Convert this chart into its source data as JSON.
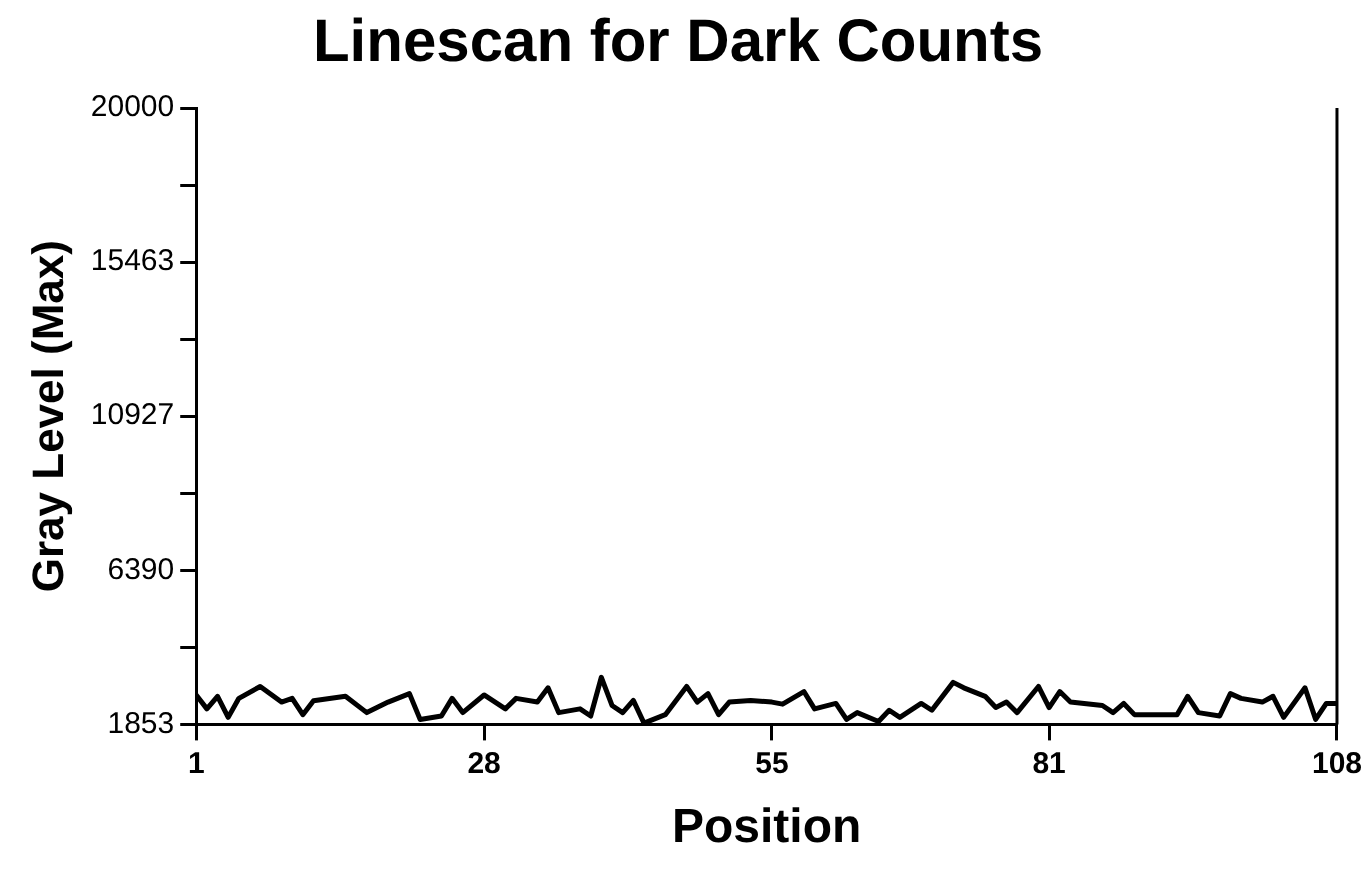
{
  "chart_data": {
    "type": "line",
    "title": "Linescan for Dark Counts",
    "xlabel": "Position",
    "ylabel": "Gray Level (Max)",
    "series": [
      {
        "color": "#000000",
        "x": [
          1,
          2,
          3,
          4,
          5,
          7,
          9,
          10,
          11,
          12,
          15,
          17,
          19,
          21,
          22,
          24,
          25,
          26,
          28,
          30,
          31,
          33,
          34,
          35,
          37,
          38,
          39,
          40,
          41,
          42,
          43,
          45,
          47,
          48,
          49,
          50,
          51,
          53,
          55,
          56,
          58,
          59,
          61,
          62,
          63,
          65,
          66,
          67,
          69,
          70,
          72,
          73,
          75,
          76,
          77,
          78,
          80,
          81,
          82,
          83,
          86,
          87,
          88,
          89,
          93,
          94,
          95,
          97,
          98,
          99,
          101,
          102,
          103,
          105,
          106,
          107,
          108
        ],
        "values": [
          2720,
          2310,
          2680,
          2060,
          2620,
          2970,
          2510,
          2620,
          2140,
          2550,
          2680,
          2200,
          2510,
          2760,
          2000,
          2100,
          2620,
          2200,
          2720,
          2310,
          2620,
          2510,
          2930,
          2200,
          2310,
          2100,
          3240,
          2410,
          2200,
          2560,
          1890,
          2140,
          2970,
          2510,
          2760,
          2140,
          2510,
          2560,
          2510,
          2450,
          2820,
          2310,
          2470,
          2000,
          2200,
          1940,
          2270,
          2060,
          2470,
          2270,
          3090,
          2930,
          2680,
          2350,
          2510,
          2200,
          2970,
          2350,
          2820,
          2510,
          2410,
          2200,
          2470,
          2140,
          2140,
          2680,
          2200,
          2100,
          2760,
          2620,
          2510,
          2680,
          2060,
          2930,
          2000,
          2470,
          2470
        ]
      }
    ],
    "xlim": [
      1,
      108
    ],
    "xticks": [
      1,
      28,
      55,
      81,
      108
    ],
    "ylim": [
      1853,
      20000
    ],
    "yticks": [
      1853,
      {
        "value": 4121.5,
        "label": null
      },
      6390,
      {
        "value": 8658.5,
        "label": null
      },
      10927,
      {
        "value": 13195,
        "label": null
      },
      15463,
      {
        "value": 17731.5,
        "label": null
      },
      20000
    ],
    "grid": false,
    "legend": false,
    "marker": "none",
    "line_style": "solid"
  }
}
